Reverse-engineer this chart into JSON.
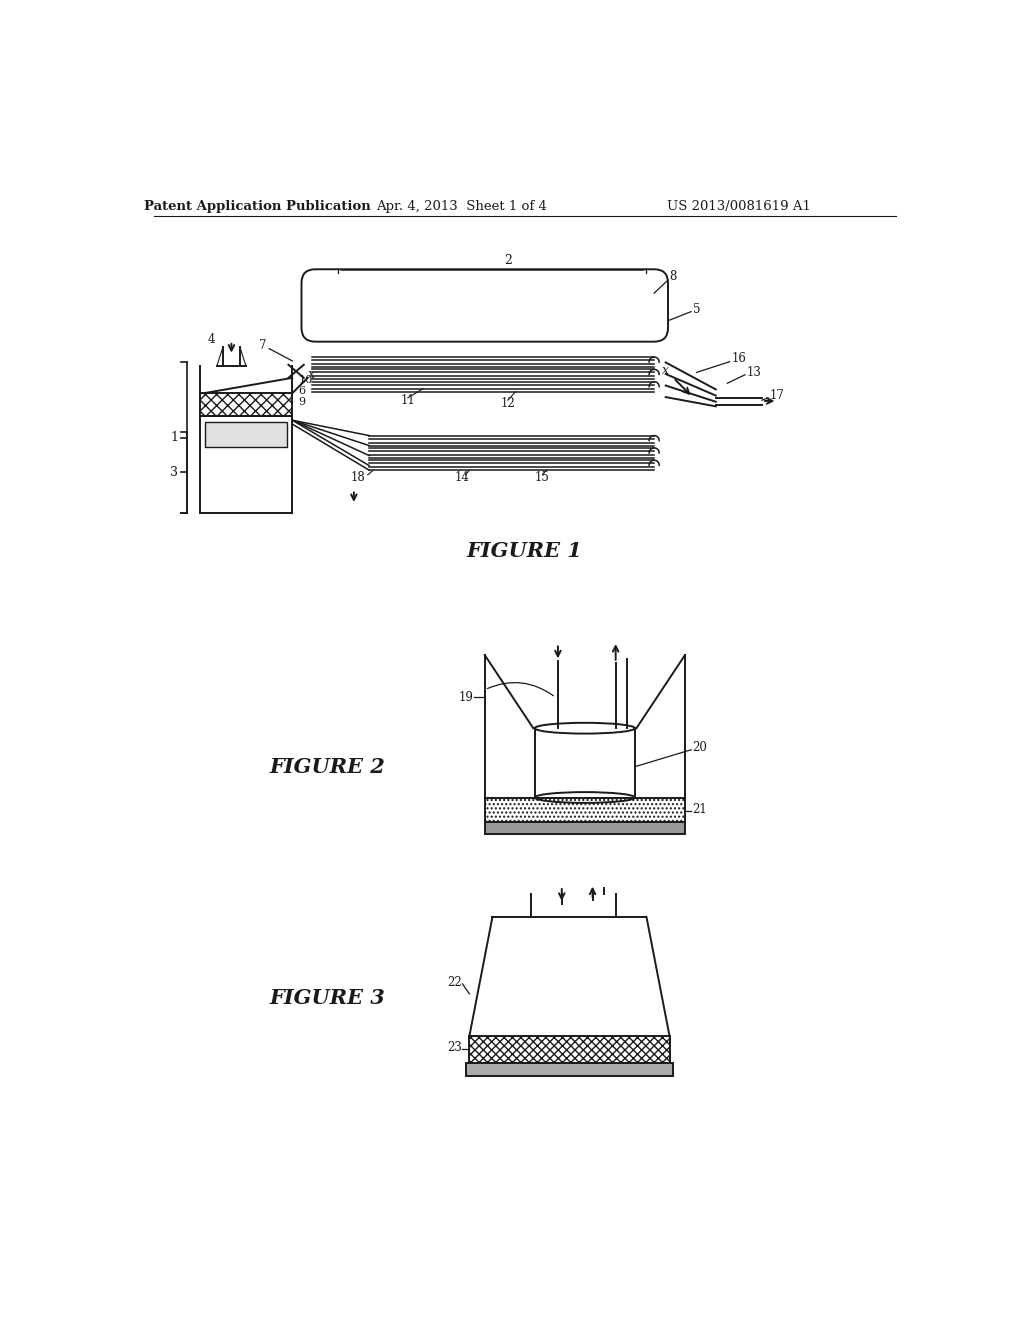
{
  "bg_color": "#ffffff",
  "header_left": "Patent Application Publication",
  "header_mid": "Apr. 4, 2013  Sheet 1 of 4",
  "header_right": "US 2013/0081619 A1",
  "fig1_title": "FIGURE 1",
  "fig2_title": "FIGURE 2",
  "fig3_title": "FIGURE 3",
  "line_color": "#1a1a1a"
}
